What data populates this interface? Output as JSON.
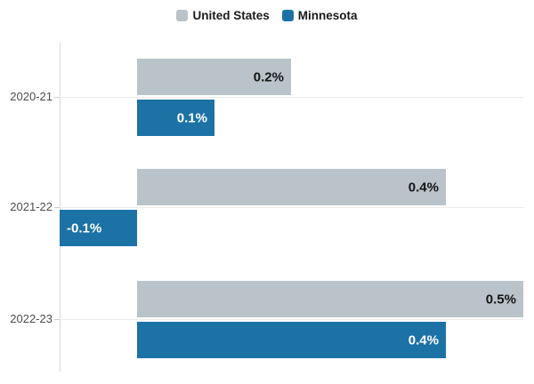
{
  "chart_data": {
    "type": "bar",
    "orientation": "horizontal",
    "title": "",
    "xlabel": "",
    "ylabel": "",
    "unit": "%",
    "categories": [
      "2020-21",
      "2021-22",
      "2022-23"
    ],
    "series": [
      {
        "name": "United States",
        "color": "#b9c3c9",
        "values": [
          0.2,
          0.4,
          0.5
        ],
        "labels": [
          "0.2%",
          "0.4%",
          "0.5%"
        ],
        "label_color": "#141414"
      },
      {
        "name": "Minnesota",
        "color": "#1d72a5",
        "values": [
          0.1,
          -0.1,
          0.4
        ],
        "labels": [
          "0.1%",
          "-0.1%",
          "0.4%"
        ],
        "label_color": "#ffffff"
      }
    ],
    "xlim": [
      -0.1,
      0.5
    ],
    "grid": "category-lines-only",
    "legend_position": "top-center",
    "value_labels_inside_bars": true
  },
  "colors": {
    "axis_line": "#d8d8d8",
    "gridline": "#ececec",
    "tick": "#cfcfcf",
    "category_label": "#4d4d4d",
    "background": "#ffffff"
  }
}
